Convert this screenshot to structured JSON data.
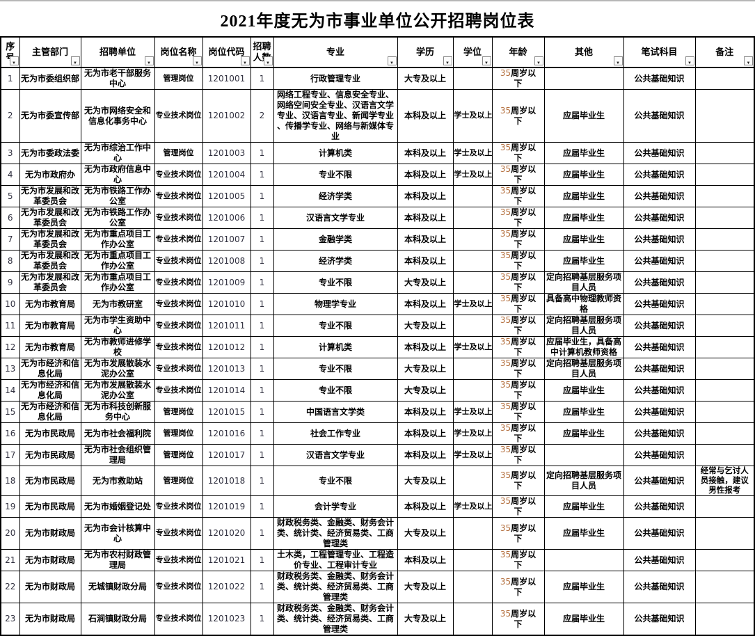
{
  "title": "2021年度无为市事业单位公开招聘岗位表",
  "colors": {
    "border": "#000000",
    "top_edge": "#b6b6b6",
    "age_number_text": "#b4703f",
    "numeric_text": "#30303f",
    "filter_button_border": "#8a8a8a"
  },
  "table": {
    "filter_icon": "chevron-down-icon",
    "columns": [
      {
        "key": "no",
        "label": "序号"
      },
      {
        "key": "dept",
        "label": "主管部门"
      },
      {
        "key": "unit",
        "label": "招聘单位"
      },
      {
        "key": "post",
        "label": "岗位名称"
      },
      {
        "key": "code",
        "label": "岗位代码"
      },
      {
        "key": "count",
        "label": "招聘人数"
      },
      {
        "key": "major",
        "label": "专业"
      },
      {
        "key": "edu",
        "label": "学历"
      },
      {
        "key": "degree",
        "label": "学位"
      },
      {
        "key": "age",
        "label": "年龄"
      },
      {
        "key": "other",
        "label": "其他"
      },
      {
        "key": "exam",
        "label": "笔试科目"
      },
      {
        "key": "note",
        "label": "备注"
      }
    ],
    "rows": [
      {
        "no": "1",
        "dept": "无为市委组织部",
        "unit": "无为市老干部服务中心",
        "post": "管理岗位",
        "code": "1201001",
        "count": "1",
        "major": "行政管理专业",
        "edu": "大专及以上",
        "degree": "",
        "age": "35周岁以下",
        "other": "",
        "exam": "公共基础知识",
        "note": ""
      },
      {
        "no": "2",
        "dept": "无为市委宣传部",
        "unit": "无为市网络安全和信息化事务中心",
        "post": "专业技术岗位",
        "code": "1201002",
        "count": "2",
        "major": "网络工程专业、信息安全专业、网络空间安全专业、汉语言文学专业、汉语言专业、新闻学专业、传播学专业、网络与新媒体专业",
        "edu": "本科及以上",
        "degree": "学士及以上",
        "age": "35周岁以下",
        "other": "应届毕业生",
        "exam": "公共基础知识",
        "note": ""
      },
      {
        "no": "3",
        "dept": "无为市委政法委",
        "unit": "无为市综治工作中心",
        "post": "管理岗位",
        "code": "1201003",
        "count": "1",
        "major": "计算机类",
        "edu": "本科及以上",
        "degree": "学士及以上",
        "age": "35周岁以下",
        "other": "应届毕业生",
        "exam": "公共基础知识",
        "note": ""
      },
      {
        "no": "4",
        "dept": "无为市政府办",
        "unit": "无为市政府信息中心",
        "post": "专业技术岗位",
        "code": "1201004",
        "count": "1",
        "major": "专业不限",
        "edu": "本科及以上",
        "degree": "学士及以上",
        "age": "35周岁以下",
        "other": "应届毕业生",
        "exam": "公共基础知识",
        "note": ""
      },
      {
        "no": "5",
        "dept": "无为市发展和改革委员会",
        "unit": "无为市铁路工作办公室",
        "post": "专业技术岗位",
        "code": "1201005",
        "count": "1",
        "major": "经济学类",
        "edu": "本科及以上",
        "degree": "",
        "age": "35周岁以下",
        "other": "应届毕业生",
        "exam": "公共基础知识",
        "note": ""
      },
      {
        "no": "6",
        "dept": "无为市发展和改革委员会",
        "unit": "无为市铁路工作办公室",
        "post": "专业技术岗位",
        "code": "1201006",
        "count": "1",
        "major": "汉语言文学专业",
        "edu": "本科及以上",
        "degree": "",
        "age": "35周岁以下",
        "other": "应届毕业生",
        "exam": "公共基础知识",
        "note": ""
      },
      {
        "no": "7",
        "dept": "无为市发展和改革委员会",
        "unit": "无为市重点项目工作办公室",
        "post": "专业技术岗位",
        "code": "1201007",
        "count": "1",
        "major": "金融学类",
        "edu": "本科及以上",
        "degree": "",
        "age": "35周岁以下",
        "other": "应届毕业生",
        "exam": "公共基础知识",
        "note": ""
      },
      {
        "no": "8",
        "dept": "无为市发展和改革委员会",
        "unit": "无为市重点项目工作办公室",
        "post": "专业技术岗位",
        "code": "1201008",
        "count": "1",
        "major": "经济学类",
        "edu": "本科及以上",
        "degree": "",
        "age": "35周岁以下",
        "other": "应届毕业生",
        "exam": "公共基础知识",
        "note": ""
      },
      {
        "no": "9",
        "dept": "无为市发展和改革委员会",
        "unit": "无为市重点项目工作办公室",
        "post": "专业技术岗位",
        "code": "1201009",
        "count": "1",
        "major": "专业不限",
        "edu": "大专及以上",
        "degree": "",
        "age": "35周岁以下",
        "other": "定向招聘基层服务项目人员",
        "exam": "公共基础知识",
        "note": ""
      },
      {
        "no": "10",
        "dept": "无为市教育局",
        "unit": "无为市教研室",
        "post": "专业技术岗位",
        "code": "1201010",
        "count": "1",
        "major": "物理学专业",
        "edu": "本科及以上",
        "degree": "学士及以上",
        "age": "35周岁以下",
        "other": "具备高中物理教师资格",
        "exam": "公共基础知识",
        "note": ""
      },
      {
        "no": "11",
        "dept": "无为市教育局",
        "unit": "无为市学生资助中心",
        "post": "专业技术岗位",
        "code": "1201011",
        "count": "1",
        "major": "专业不限",
        "edu": "大专及以上",
        "degree": "",
        "age": "35周岁以下",
        "other": "定向招聘基层服务项目人员",
        "exam": "公共基础知识",
        "note": ""
      },
      {
        "no": "12",
        "dept": "无为市教育局",
        "unit": "无为市教师进修学校",
        "post": "专业技术岗位",
        "code": "1201012",
        "count": "1",
        "major": "计算机类",
        "edu": "本科及以上",
        "degree": "学士及以上",
        "age": "35周岁以下",
        "other": "应届毕业生，具备高中计算机教师资格",
        "exam": "公共基础知识",
        "note": ""
      },
      {
        "no": "13",
        "dept": "无为市经济和信息化局",
        "unit": "无为市发展散装水泥办公室",
        "post": "专业技术岗位",
        "code": "1201013",
        "count": "1",
        "major": "专业不限",
        "edu": "大专及以上",
        "degree": "",
        "age": "35周岁以下",
        "other": "定向招聘基层服务项目人员",
        "exam": "公共基础知识",
        "note": ""
      },
      {
        "no": "14",
        "dept": "无为市经济和信息化局",
        "unit": "无为市发展散装水泥办公室",
        "post": "专业技术岗位",
        "code": "1201014",
        "count": "1",
        "major": "专业不限",
        "edu": "大专及以上",
        "degree": "",
        "age": "35周岁以下",
        "other": "应届毕业生",
        "exam": "公共基础知识",
        "note": ""
      },
      {
        "no": "15",
        "dept": "无为市经济和信息化局",
        "unit": "无为市科技创新服务中心",
        "post": "管理岗位",
        "code": "1201015",
        "count": "1",
        "major": "中国语言文学类",
        "edu": "本科及以上",
        "degree": "学士及以上",
        "age": "35周岁以下",
        "other": "应届毕业生",
        "exam": "公共基础知识",
        "note": ""
      },
      {
        "no": "16",
        "dept": "无为市民政局",
        "unit": "无为市社会福利院",
        "post": "管理岗位",
        "code": "1201016",
        "count": "1",
        "major": "社会工作专业",
        "edu": "本科及以上",
        "degree": "学士及以上",
        "age": "35周岁以下",
        "other": "应届毕业生",
        "exam": "公共基础知识",
        "note": ""
      },
      {
        "no": "17",
        "dept": "无为市民政局",
        "unit": "无为市社会组织管理局",
        "post": "管理岗位",
        "code": "1201017",
        "count": "1",
        "major": "汉语言文学专业",
        "edu": "本科及以上",
        "degree": "学士及以上",
        "age": "35周岁以下",
        "other": "",
        "exam": "公共基础知识",
        "note": ""
      },
      {
        "no": "18",
        "dept": "无为市民政局",
        "unit": "无为市救助站",
        "post": "管理岗位",
        "code": "1201018",
        "count": "1",
        "major": "专业不限",
        "edu": "大专及以上",
        "degree": "",
        "age": "35周岁以下",
        "other": "定向招聘基层服务项目人员",
        "exam": "公共基础知识",
        "note": "经常与乞讨人员接触，建议男性报考"
      },
      {
        "no": "19",
        "dept": "无为市民政局",
        "unit": "无为市婚姻登记处",
        "post": "专业技术岗位",
        "code": "1201019",
        "count": "1",
        "major": "会计学专业",
        "edu": "本科及以上",
        "degree": "学士及以上",
        "age": "35周岁以下",
        "other": "应届毕业生",
        "exam": "公共基础知识",
        "note": ""
      },
      {
        "no": "20",
        "dept": "无为市财政局",
        "unit": "无为市会计核算中心",
        "post": "专业技术岗位",
        "code": "1201020",
        "count": "1",
        "major": "财政税务类、金融类、财务会计类、统计类、经济贸易类、工商管理类",
        "edu": "大专及以上",
        "degree": "",
        "age": "35周岁以下",
        "other": "应届毕业生",
        "exam": "公共基础知识",
        "note": ""
      },
      {
        "no": "21",
        "dept": "无为市财政局",
        "unit": "无为市农村财政管理局",
        "post": "专业技术岗位",
        "code": "1201021",
        "count": "1",
        "major": "土木类，工程管理专业、工程造价专业、工程审计专业",
        "edu": "本科及以上",
        "degree": "",
        "age": "35周岁以下",
        "other": "",
        "exam": "公共基础知识",
        "note": ""
      },
      {
        "no": "22",
        "dept": "无为市财政局",
        "unit": "无城镇财政分局",
        "post": "专业技术岗位",
        "code": "1201022",
        "count": "1",
        "major": "财政税务类、金融类、财务会计类、统计类、经济贸易类、工商管理类",
        "edu": "大专及以上",
        "degree": "",
        "age": "35周岁以下",
        "other": "应届毕业生",
        "exam": "公共基础知识",
        "note": ""
      },
      {
        "no": "23",
        "dept": "无为市财政局",
        "unit": "石涧镇财政分局",
        "post": "专业技术岗位",
        "code": "1201023",
        "count": "1",
        "major": "财政税务类、金融类、财务会计类、统计类、经济贸易类、工商管理类",
        "edu": "大专及以上",
        "degree": "",
        "age": "35周岁以下",
        "other": "应届毕业生",
        "exam": "公共基础知识",
        "note": ""
      }
    ]
  }
}
